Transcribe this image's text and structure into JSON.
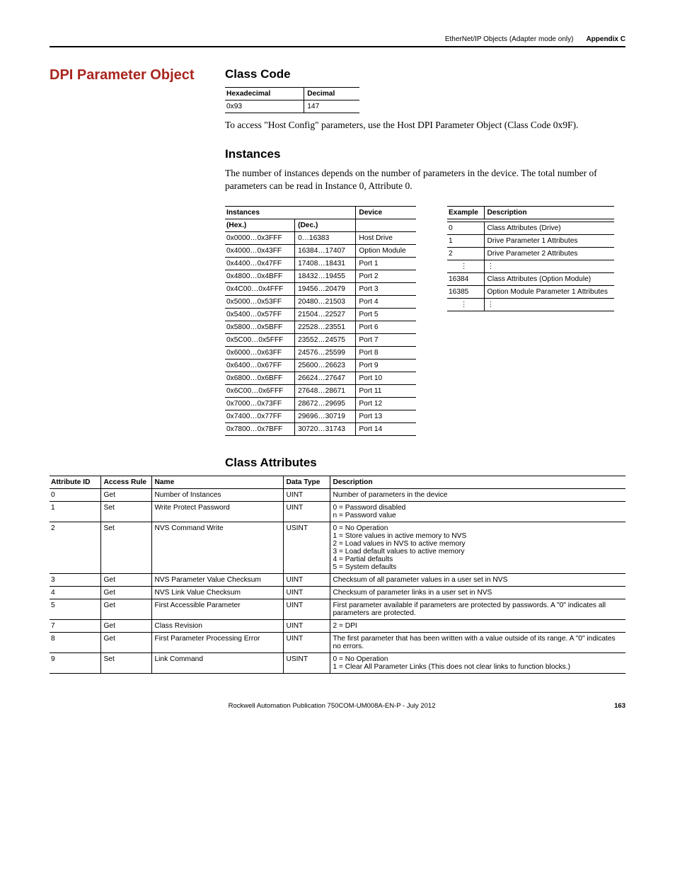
{
  "runningHeader": {
    "title": "EtherNet/IP Objects (Adapter mode only)",
    "appendix": "Appendix C"
  },
  "leftCol": {
    "pageTitle": "DPI Parameter Object"
  },
  "classCode": {
    "heading": "Class Code",
    "headers": [
      "Hexadecimal",
      "Decimal"
    ],
    "row": [
      "0x93",
      "147"
    ],
    "note": "To access \"Host Config\" parameters, use the Host DPI Parameter Object (Class Code 0x9F)."
  },
  "instancesSection": {
    "heading": "Instances",
    "intro": "The number of instances depends on the number of parameters in the device. The total number of parameters can be read in Instance 0, Attribute 0.",
    "table1": {
      "h1": "Instances",
      "h2": "Device",
      "sub1": "(Hex.)",
      "sub2": "(Dec.)",
      "rows": [
        [
          "0x0000…0x3FFF",
          "0…16383",
          "Host Drive"
        ],
        [
          "0x4000…0x43FF",
          "16384…17407",
          "Option Module"
        ],
        [
          "0x4400…0x47FF",
          "17408…18431",
          "Port 1"
        ],
        [
          "0x4800…0x4BFF",
          "18432…19455",
          "Port 2"
        ],
        [
          "0x4C00…0x4FFF",
          "19456…20479",
          "Port 3"
        ],
        [
          "0x5000…0x53FF",
          "20480…21503",
          "Port 4"
        ],
        [
          "0x5400…0x57FF",
          "21504…22527",
          "Port 5"
        ],
        [
          "0x5800…0x5BFF",
          "22528…23551",
          "Port 6"
        ],
        [
          "0x5C00…0x5FFF",
          "23552…24575",
          "Port 7"
        ],
        [
          "0x6000…0x63FF",
          "24576…25599",
          "Port 8"
        ],
        [
          "0x6400…0x67FF",
          "25600…26623",
          "Port 9"
        ],
        [
          "0x6800…0x6BFF",
          "26624…27647",
          "Port 10"
        ],
        [
          "0x6C00…0x6FFF",
          "27648…28671",
          "Port 11"
        ],
        [
          "0x7000…0x73FF",
          "28672…29695",
          "Port 12"
        ],
        [
          "0x7400…0x77FF",
          "29696…30719",
          "Port 13"
        ],
        [
          "0x7800…0x7BFF",
          "30720…31743",
          "Port 14"
        ]
      ]
    },
    "table2": {
      "h1": "Example",
      "h2": "Description",
      "rows": [
        [
          "0",
          "Class Attributes (Drive)"
        ],
        [
          "1",
          "Drive Parameter 1 Attributes"
        ],
        [
          "2",
          "Drive Parameter 2 Attributes"
        ],
        [
          "⋮",
          "⋮"
        ],
        [
          "16384",
          "Class Attributes (Option Module)"
        ],
        [
          "16385",
          "Option Module Parameter 1 Attributes"
        ],
        [
          "⋮",
          "⋮"
        ]
      ]
    }
  },
  "classAttr": {
    "heading": "Class Attributes",
    "headers": [
      "Attribute ID",
      "Access Rule",
      "Name",
      "Data Type",
      "Description"
    ],
    "rows": [
      {
        "c": [
          "0",
          "Get",
          "Number of Instances",
          "UINT",
          "Number of parameters in the device"
        ]
      },
      {
        "c": [
          "1",
          "Set",
          "Write Protect Password",
          "UINT",
          "0 = Password disabled\nn = Password value"
        ]
      },
      {
        "c": [
          "2",
          "Set",
          "NVS Command Write",
          "USINT",
          "0 = No Operation\n1 = Store values in active memory to NVS\n2 = Load values in NVS to active memory\n3 = Load default values to active memory\n4 = Partial defaults\n5 = System defaults"
        ]
      },
      {
        "c": [
          "3",
          "Get",
          "NVS Parameter Value Checksum",
          "UINT",
          "Checksum of all parameter values in a user set in NVS"
        ]
      },
      {
        "c": [
          "4",
          "Get",
          "NVS Link Value Checksum",
          "UINT",
          "Checksum of parameter links in a user set in NVS"
        ]
      },
      {
        "c": [
          "5",
          "Get",
          "First Accessible Parameter",
          "UINT",
          "First parameter available if parameters are protected by passwords. A \"0\" indicates all parameters are protected."
        ]
      },
      {
        "c": [
          "7",
          "Get",
          "Class Revision",
          "UINT",
          "2 = DPI"
        ]
      },
      {
        "c": [
          "8",
          "Get",
          "First Parameter Processing Error",
          "UINT",
          "The first parameter that has been written with a value outside of its range. A \"0\" indicates no errors."
        ]
      },
      {
        "c": [
          "9",
          "Set",
          "Link Command",
          "USINT",
          "0 = No Operation\n1 = Clear All Parameter Links (This does not clear links to function blocks.)"
        ]
      }
    ]
  },
  "footer": {
    "pub": "Rockwell Automation Publication 750COM-UM008A-EN-P - July 2012",
    "page": "163"
  }
}
